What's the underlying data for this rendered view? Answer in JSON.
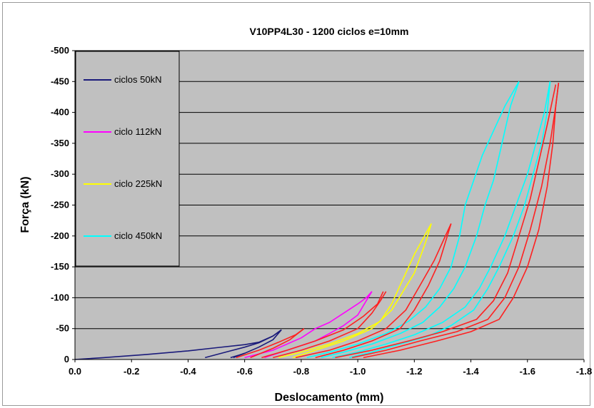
{
  "chart_data": {
    "type": "line",
    "title": "V10PP4L30 - 1200 ciclos e=10mm",
    "xlabel": "Deslocamento (mm)",
    "ylabel": "Força (kN)",
    "xlim": [
      0.0,
      -1.8
    ],
    "ylim": [
      0,
      -500
    ],
    "x_ticks": [
      "0.0",
      "-0.2",
      "-0.4",
      "-0.6",
      "-0.8",
      "-1.0",
      "-1.2",
      "-1.4",
      "-1.6",
      "-1.8"
    ],
    "y_ticks": [
      "0",
      "-50",
      "-100",
      "-150",
      "-200",
      "-250",
      "-300",
      "-350",
      "-400",
      "-450",
      "-500"
    ],
    "grid": "horizontal",
    "legend_placement": "top-left",
    "series": [
      {
        "name": "ciclos 50kN",
        "color": "#1a1a7a",
        "paths": [
          [
            [
              0.0,
              0
            ],
            [
              -0.1,
              -3
            ],
            [
              -0.25,
              -8
            ],
            [
              -0.4,
              -14
            ],
            [
              -0.5,
              -19
            ],
            [
              -0.6,
              -24
            ],
            [
              -0.65,
              -28
            ],
            [
              -0.7,
              -38
            ],
            [
              -0.73,
              -48
            ]
          ],
          [
            [
              -0.46,
              -3
            ],
            [
              -0.5,
              -8
            ],
            [
              -0.55,
              -14
            ],
            [
              -0.6,
              -20
            ],
            [
              -0.65,
              -27
            ],
            [
              -0.7,
              -38
            ],
            [
              -0.73,
              -48
            ]
          ],
          [
            [
              -0.55,
              -3
            ],
            [
              -0.58,
              -7
            ],
            [
              -0.6,
              -10
            ]
          ],
          [
            [
              -0.56,
              -3
            ],
            [
              -0.6,
              -10
            ],
            [
              -0.65,
              -20
            ],
            [
              -0.7,
              -32
            ],
            [
              -0.73,
              -48
            ]
          ]
        ]
      },
      {
        "name": "ciclo 112kN",
        "color": "#ff00ff",
        "paths": [
          [
            [
              -0.6,
              -3
            ],
            [
              -0.7,
              -15
            ],
            [
              -0.8,
              -35
            ],
            [
              -0.85,
              -50
            ],
            [
              -0.9,
              -60
            ],
            [
              -0.95,
              -75
            ],
            [
              -1.0,
              -90
            ],
            [
              -1.03,
              -100
            ],
            [
              -1.05,
              -110
            ]
          ],
          [
            [
              -0.67,
              -3
            ],
            [
              -0.75,
              -15
            ],
            [
              -0.85,
              -30
            ],
            [
              -0.9,
              -42
            ],
            [
              -0.95,
              -55
            ],
            [
              -1.0,
              -72
            ],
            [
              -1.03,
              -95
            ],
            [
              -1.05,
              -110
            ]
          ]
        ]
      },
      {
        "name": "ciclo 225kN",
        "color": "#ffff00",
        "paths": [
          [
            [
              -0.72,
              -3
            ],
            [
              -0.8,
              -12
            ],
            [
              -0.9,
              -25
            ],
            [
              -1.0,
              -42
            ],
            [
              -1.08,
              -62
            ],
            [
              -1.12,
              -90
            ],
            [
              -1.15,
              -120
            ],
            [
              -1.18,
              -150
            ],
            [
              -1.2,
              -170
            ],
            [
              -1.23,
              -195
            ],
            [
              -1.26,
              -220
            ]
          ],
          [
            [
              -0.77,
              -3
            ],
            [
              -0.85,
              -15
            ],
            [
              -0.95,
              -30
            ],
            [
              -1.05,
              -50
            ],
            [
              -1.12,
              -80
            ],
            [
              -1.16,
              -110
            ],
            [
              -1.2,
              -140
            ],
            [
              -1.22,
              -165
            ],
            [
              -1.24,
              -190
            ],
            [
              -1.26,
              -220
            ]
          ]
        ]
      },
      {
        "name": "ciclo 450kN",
        "color": "#00ffff",
        "paths": [
          [
            [
              -0.82,
              -3
            ],
            [
              -0.9,
              -12
            ],
            [
              -1.0,
              -25
            ],
            [
              -1.1,
              -42
            ],
            [
              -1.18,
              -62
            ],
            [
              -1.24,
              -85
            ],
            [
              -1.29,
              -115
            ],
            [
              -1.33,
              -150
            ],
            [
              -1.36,
              -200
            ],
            [
              -1.38,
              -250
            ],
            [
              -1.41,
              -290
            ],
            [
              -1.44,
              -330
            ],
            [
              -1.48,
              -370
            ],
            [
              -1.52,
              -410
            ],
            [
              -1.57,
              -450
            ]
          ],
          [
            [
              -0.87,
              -3
            ],
            [
              -0.95,
              -12
            ],
            [
              -1.05,
              -25
            ],
            [
              -1.15,
              -42
            ],
            [
              -1.23,
              -60
            ],
            [
              -1.29,
              -85
            ],
            [
              -1.34,
              -115
            ],
            [
              -1.38,
              -150
            ],
            [
              -1.42,
              -200
            ],
            [
              -1.45,
              -250
            ],
            [
              -1.48,
              -290
            ],
            [
              -1.5,
              -330
            ],
            [
              -1.52,
              -370
            ],
            [
              -1.54,
              -410
            ],
            [
              -1.57,
              -450
            ]
          ],
          [
            [
              -0.91,
              -3
            ],
            [
              -1.0,
              -12
            ],
            [
              -1.1,
              -25
            ],
            [
              -1.2,
              -40
            ],
            [
              -1.3,
              -60
            ],
            [
              -1.38,
              -85
            ],
            [
              -1.43,
              -115
            ],
            [
              -1.47,
              -150
            ],
            [
              -1.52,
              -200
            ],
            [
              -1.56,
              -250
            ],
            [
              -1.6,
              -300
            ],
            [
              -1.63,
              -350
            ],
            [
              -1.66,
              -400
            ],
            [
              -1.68,
              -450
            ]
          ],
          [
            [
              -0.97,
              -3
            ],
            [
              -1.05,
              -12
            ],
            [
              -1.15,
              -25
            ],
            [
              -1.25,
              -38
            ],
            [
              -1.33,
              -55
            ],
            [
              -1.41,
              -80
            ],
            [
              -1.46,
              -115
            ],
            [
              -1.5,
              -150
            ],
            [
              -1.55,
              -200
            ],
            [
              -1.59,
              -250
            ],
            [
              -1.62,
              -300
            ],
            [
              -1.65,
              -350
            ],
            [
              -1.67,
              -400
            ],
            [
              -1.68,
              -450
            ]
          ]
        ]
      },
      {
        "name": "",
        "color": "#ff2020",
        "paths": [
          [
            [
              -0.57,
              -3
            ],
            [
              -0.65,
              -15
            ],
            [
              -0.72,
              -28
            ],
            [
              -0.78,
              -40
            ],
            [
              -0.81,
              -50
            ]
          ],
          [
            [
              -0.62,
              -3
            ],
            [
              -0.7,
              -18
            ],
            [
              -0.76,
              -32
            ],
            [
              -0.81,
              -50
            ]
          ],
          [
            [
              -0.66,
              -3
            ],
            [
              -0.75,
              -15
            ],
            [
              -0.85,
              -30
            ],
            [
              -0.95,
              -48
            ],
            [
              -1.02,
              -70
            ],
            [
              -1.07,
              -90
            ],
            [
              -1.09,
              -110
            ]
          ],
          [
            [
              -0.7,
              -3
            ],
            [
              -0.8,
              -15
            ],
            [
              -0.9,
              -30
            ],
            [
              -1.0,
              -50
            ],
            [
              -1.05,
              -75
            ],
            [
              -1.08,
              -95
            ],
            [
              -1.1,
              -110
            ]
          ],
          [
            [
              -0.78,
              -3
            ],
            [
              -0.9,
              -15
            ],
            [
              -1.0,
              -30
            ],
            [
              -1.1,
              -50
            ],
            [
              -1.17,
              -80
            ],
            [
              -1.22,
              -120
            ],
            [
              -1.27,
              -160
            ],
            [
              -1.3,
              -190
            ],
            [
              -1.33,
              -220
            ]
          ],
          [
            [
              -0.85,
              -3
            ],
            [
              -0.95,
              -15
            ],
            [
              -1.05,
              -30
            ],
            [
              -1.15,
              -50
            ],
            [
              -1.2,
              -80
            ],
            [
              -1.25,
              -120
            ],
            [
              -1.29,
              -160
            ],
            [
              -1.31,
              -190
            ],
            [
              -1.33,
              -220
            ]
          ],
          [
            [
              -0.92,
              -3
            ],
            [
              -1.05,
              -15
            ],
            [
              -1.18,
              -30
            ],
            [
              -1.3,
              -45
            ],
            [
              -1.42,
              -65
            ],
            [
              -1.48,
              -95
            ],
            [
              -1.53,
              -140
            ],
            [
              -1.57,
              -200
            ],
            [
              -1.61,
              -260
            ],
            [
              -1.64,
              -320
            ],
            [
              -1.67,
              -380
            ],
            [
              -1.7,
              -445
            ]
          ],
          [
            [
              -0.98,
              -3
            ],
            [
              -1.1,
              -15
            ],
            [
              -1.22,
              -30
            ],
            [
              -1.35,
              -45
            ],
            [
              -1.46,
              -65
            ],
            [
              -1.52,
              -100
            ],
            [
              -1.57,
              -150
            ],
            [
              -1.61,
              -210
            ],
            [
              -1.65,
              -280
            ],
            [
              -1.68,
              -350
            ],
            [
              -1.7,
              -410
            ],
            [
              -1.71,
              -448
            ]
          ],
          [
            [
              -1.02,
              -3
            ],
            [
              -1.15,
              -15
            ],
            [
              -1.28,
              -30
            ],
            [
              -1.4,
              -45
            ],
            [
              -1.5,
              -65
            ],
            [
              -1.55,
              -100
            ],
            [
              -1.6,
              -150
            ],
            [
              -1.64,
              -210
            ],
            [
              -1.67,
              -280
            ],
            [
              -1.69,
              -350
            ],
            [
              -1.7,
              -410
            ],
            [
              -1.71,
              -448
            ]
          ]
        ]
      }
    ]
  }
}
